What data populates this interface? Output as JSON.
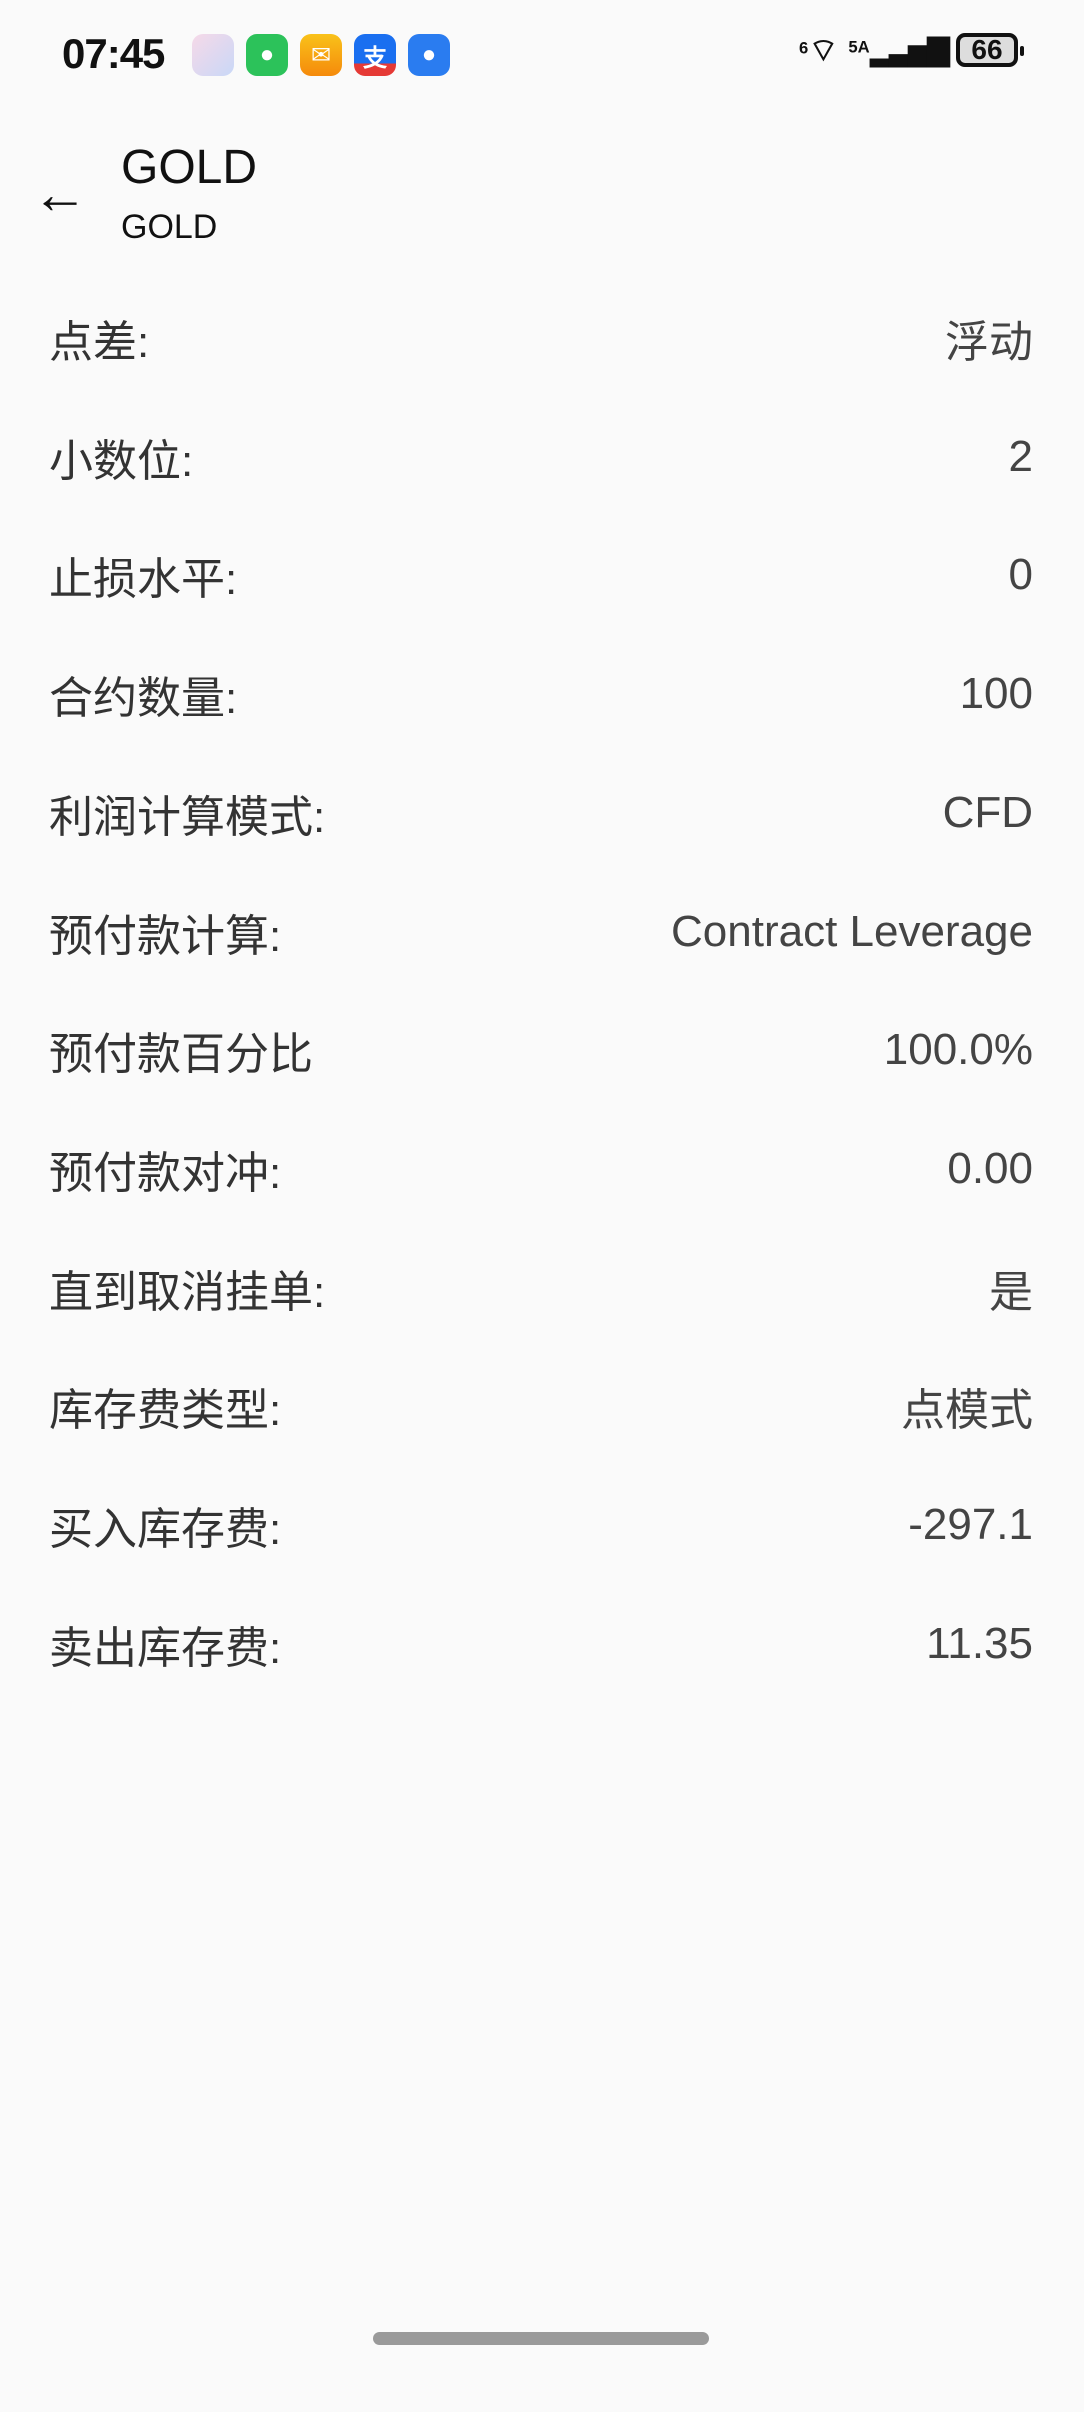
{
  "status_bar": {
    "time": "07:45",
    "app_icons": [
      "gallery-icon",
      "wechat-icon",
      "mail-icon",
      "alipay-icon",
      "messages-icon"
    ],
    "wifi_label": "6",
    "signal_label": "5A",
    "battery": "66"
  },
  "header": {
    "title": "GOLD",
    "subtitle": "GOLD"
  },
  "rows": [
    {
      "label": "点差:",
      "value": "浮动"
    },
    {
      "label": "小数位:",
      "value": "2"
    },
    {
      "label": "止损水平:",
      "value": "0"
    },
    {
      "label": "合约数量:",
      "value": "100"
    },
    {
      "label": "利润计算模式:",
      "value": "CFD"
    },
    {
      "label": "预付款计算:",
      "value": "Contract Leverage"
    },
    {
      "label": "预付款百分比",
      "value": "100.0%"
    },
    {
      "label": "预付款对冲:",
      "value": "0.00"
    },
    {
      "label": "直到取消挂单:",
      "value": "是"
    },
    {
      "label": "库存费类型:",
      "value": "点模式"
    },
    {
      "label": "买入库存费:",
      "value": "-297.1"
    },
    {
      "label": "卖出库存费:",
      "value": "11.35"
    }
  ]
}
